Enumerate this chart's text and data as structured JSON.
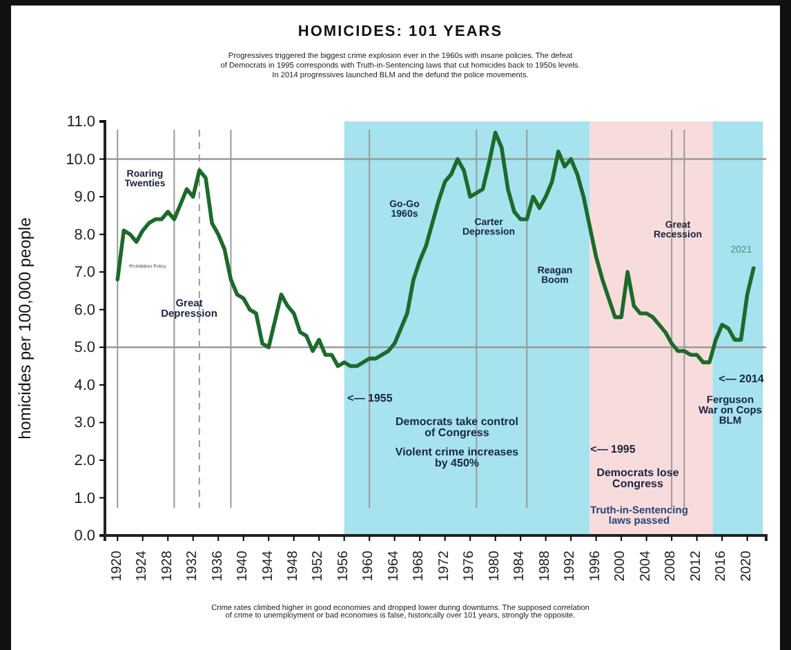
{
  "chart_data": {
    "type": "line",
    "title": "HOMICIDES: 101 YEARS",
    "subtitle": "Progressives triggered the biggest crime explosion ever in the 1960s with insane policies. The defeat\nof Democrats in 1995 corresponds with Truth-in-Sentencing laws that cut homicides back to 1950s levels.\nIn 2014 progressives launched BLM and the defund the police movements.",
    "ylabel": "homicides per 100,000 people",
    "x": [
      1920,
      1921,
      1922,
      1923,
      1924,
      1925,
      1926,
      1927,
      1928,
      1929,
      1930,
      1931,
      1932,
      1933,
      1934,
      1935,
      1936,
      1937,
      1938,
      1939,
      1940,
      1941,
      1942,
      1943,
      1944,
      1945,
      1946,
      1947,
      1948,
      1949,
      1950,
      1951,
      1952,
      1953,
      1954,
      1955,
      1956,
      1957,
      1958,
      1959,
      1960,
      1961,
      1962,
      1963,
      1964,
      1965,
      1966,
      1967,
      1968,
      1969,
      1970,
      1971,
      1972,
      1973,
      1974,
      1975,
      1976,
      1977,
      1978,
      1979,
      1980,
      1981,
      1982,
      1983,
      1984,
      1985,
      1986,
      1987,
      1988,
      1989,
      1990,
      1991,
      1992,
      1993,
      1994,
      1995,
      1996,
      1997,
      1998,
      1999,
      2000,
      2001,
      2002,
      2003,
      2004,
      2005,
      2006,
      2007,
      2008,
      2009,
      2010,
      2011,
      2012,
      2013,
      2014,
      2015,
      2016,
      2017,
      2018,
      2019,
      2020,
      2021
    ],
    "series": [
      {
        "color": "#1d6a2c",
        "values": [
          6.8,
          8.1,
          8.0,
          7.8,
          8.1,
          8.3,
          8.4,
          8.4,
          8.6,
          8.4,
          8.8,
          9.2,
          9.0,
          9.7,
          9.5,
          8.3,
          8.0,
          7.6,
          6.8,
          6.4,
          6.3,
          6.0,
          5.9,
          5.1,
          5.0,
          5.7,
          6.4,
          6.1,
          5.9,
          5.4,
          5.3,
          4.9,
          5.2,
          4.8,
          4.8,
          4.5,
          4.6,
          4.5,
          4.5,
          4.6,
          4.7,
          4.7,
          4.8,
          4.9,
          5.1,
          5.5,
          5.9,
          6.8,
          7.3,
          7.7,
          8.3,
          8.9,
          9.4,
          9.6,
          10.0,
          9.7,
          9.0,
          9.1,
          9.2,
          9.9,
          10.7,
          10.3,
          9.2,
          8.6,
          8.4,
          8.4,
          9.0,
          8.7,
          9.0,
          9.4,
          10.2,
          9.8,
          10.0,
          9.6,
          9.0,
          8.2,
          7.4,
          6.8,
          6.3,
          5.8,
          5.8,
          7.0,
          6.1,
          5.9,
          5.9,
          5.8,
          5.6,
          5.4,
          5.1,
          4.9,
          4.9,
          4.8,
          4.8,
          4.6,
          4.6,
          5.2,
          5.6,
          5.5,
          5.2,
          5.2,
          6.4,
          7.1
        ]
      }
    ],
    "xlim": [
      1918,
      2023
    ],
    "xticks": [
      1920,
      1924,
      1928,
      1932,
      1936,
      1940,
      1944,
      1948,
      1952,
      1956,
      1960,
      1964,
      1968,
      1972,
      1976,
      1980,
      1984,
      1988,
      1992,
      1996,
      2000,
      2004,
      2008,
      2012,
      2016,
      2020
    ],
    "ylim": [
      0,
      11
    ],
    "yticks": [
      {
        "value": 0,
        "label": "0.0"
      },
      {
        "value": 1,
        "label": "1.0"
      },
      {
        "value": 2,
        "label": "2.0"
      },
      {
        "value": 3,
        "label": "3.0"
      },
      {
        "value": 4,
        "label": "4.0"
      },
      {
        "value": 5,
        "label": "5.0"
      },
      {
        "value": 6,
        "label": "6.0"
      },
      {
        "value": 7,
        "label": "7.0"
      },
      {
        "value": 8,
        "label": "8.0"
      },
      {
        "value": 9,
        "label": "9.0"
      },
      {
        "value": 10,
        "label": "10.0"
      },
      {
        "value": 11,
        "label": "11.0"
      }
    ],
    "grid": false,
    "marker": "none",
    "line_style": "solid",
    "bands": [
      {
        "axis": "x",
        "from": 1956,
        "to": 1995,
        "color": "#a6e3ee"
      },
      {
        "axis": "x",
        "from": 1995,
        "to": 2014.5,
        "color": "#f8dcdc"
      },
      {
        "axis": "x",
        "from": 2014.5,
        "to": 2022.5,
        "color": "#a6e3ee"
      }
    ],
    "ref_lines": [
      {
        "axis": "y",
        "value": 5,
        "color": "#9a9a9a"
      },
      {
        "axis": "y",
        "value": 10,
        "color": "#9a9a9a"
      },
      {
        "axis": "x",
        "value": 1920,
        "color": "#9a9a9a"
      },
      {
        "axis": "x",
        "value": 1929,
        "color": "#9a9a9a"
      },
      {
        "axis": "x",
        "value": 1933,
        "color": "#9a9a9a",
        "line_style": "dashed"
      },
      {
        "axis": "x",
        "value": 1938,
        "color": "#9a9a9a"
      },
      {
        "axis": "x",
        "value": 1960,
        "color": "#9a9a9a"
      },
      {
        "axis": "x",
        "value": 1977,
        "color": "#9a9a9a"
      },
      {
        "axis": "x",
        "value": 1985,
        "color": "#9a9a9a"
      },
      {
        "axis": "x",
        "value": 2008,
        "color": "#9a9a9a"
      },
      {
        "axis": "x",
        "value": 2010,
        "color": "#9a9a9a"
      }
    ],
    "annotations": [
      "Roaring\nTwenties",
      "Prohibition Policy",
      "Great\nDepression",
      "Go-Go\n1960s",
      "Carter\nDepression",
      "Reagan\nBoom",
      "Great\nRecession",
      "2021",
      "<— 2014",
      "Ferguson\nWar on Cops\nBLM",
      "<— 1955",
      "Democrats take control\nof Congress",
      "Violent crime increases\nby 450%",
      "<— 1995",
      "Democrats lose\nCongress",
      "Truth-in-Sentencing\nlaws passed",
      "Crime rates climbed higher in good economies and dropped lower during downturns.  The supposed correlation\nof crime to unemployment or bad economies is false, historically over 101 years, strongly the opposite."
    ]
  }
}
